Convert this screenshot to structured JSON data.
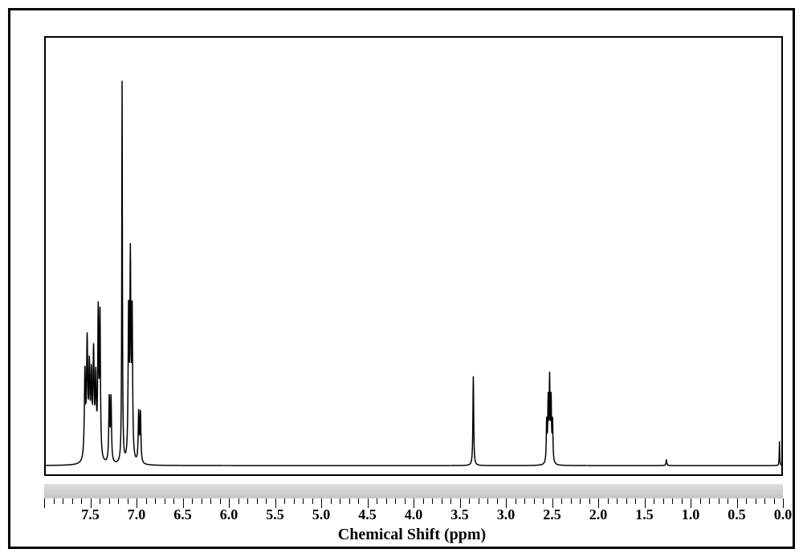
{
  "nmr_spectrum": {
    "type": "line",
    "axis": {
      "xlabel": "Chemical Shift (ppm)",
      "xlim": [
        8.0,
        0.0
      ],
      "xtick_step": 0.5,
      "xtick_labels": [
        "7.5",
        "7.0",
        "6.5",
        "6.0",
        "5.5",
        "5.0",
        "4.5",
        "4.0",
        "3.5",
        "3.0",
        "2.5",
        "2.0",
        "1.5",
        "1.0",
        "0.5",
        "0.0"
      ],
      "tick_label_fontsize": 18,
      "xlabel_fontsize": 20
    },
    "colors": {
      "line": "#000000",
      "background": "#ffffff",
      "frame": "#000000",
      "axis_strip": "#d0d0d0"
    },
    "line_width": 1.5,
    "baseline_y": 0.02,
    "peaks": [
      {
        "ppm": 7.55,
        "height": 0.28,
        "width": 0.015,
        "mult": "m",
        "mult_n": 3
      },
      {
        "ppm": 7.48,
        "height": 0.25,
        "width": 0.015,
        "mult": "m",
        "mult_n": 3
      },
      {
        "ppm": 7.42,
        "height": 0.4,
        "width": 0.012,
        "mult": "m",
        "mult_n": 2
      },
      {
        "ppm": 7.3,
        "height": 0.18,
        "width": 0.012,
        "mult": "m",
        "mult_n": 2
      },
      {
        "ppm": 7.17,
        "height": 0.94,
        "width": 0.008,
        "mult": "s",
        "mult_n": 1
      },
      {
        "ppm": 7.08,
        "height": 0.48,
        "width": 0.012,
        "mult": "m",
        "mult_n": 3
      },
      {
        "ppm": 6.98,
        "height": 0.14,
        "width": 0.012,
        "mult": "m",
        "mult_n": 2
      },
      {
        "ppm": 3.35,
        "height": 0.22,
        "width": 0.01,
        "mult": "s",
        "mult_n": 1
      },
      {
        "ppm": 2.52,
        "height": 0.2,
        "width": 0.01,
        "mult": "quint",
        "mult_n": 5
      },
      {
        "ppm": 1.25,
        "height": 0.015,
        "width": 0.01,
        "mult": "s",
        "mult_n": 1
      },
      {
        "ppm": 0.02,
        "height": 0.06,
        "width": 0.006,
        "mult": "s",
        "mult_n": 1
      }
    ]
  }
}
